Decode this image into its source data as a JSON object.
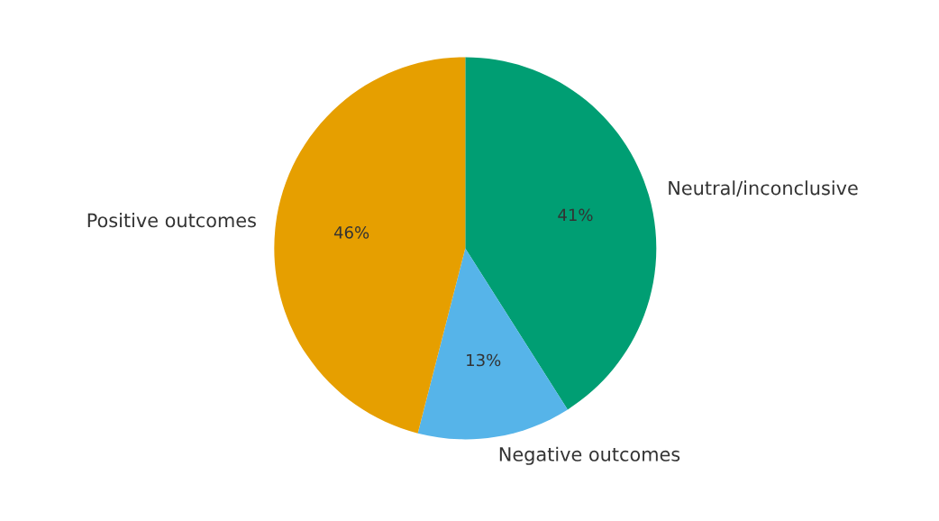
{
  "chart_data": {
    "type": "pie",
    "categories": [
      "Neutral/inconclusive",
      "Negative outcomes",
      "Positive outcomes"
    ],
    "values": [
      41,
      13,
      46
    ],
    "value_labels": [
      "41%",
      "13%",
      "46%"
    ],
    "colors": [
      "#009e73",
      "#56b4e9",
      "#e69f00"
    ]
  }
}
